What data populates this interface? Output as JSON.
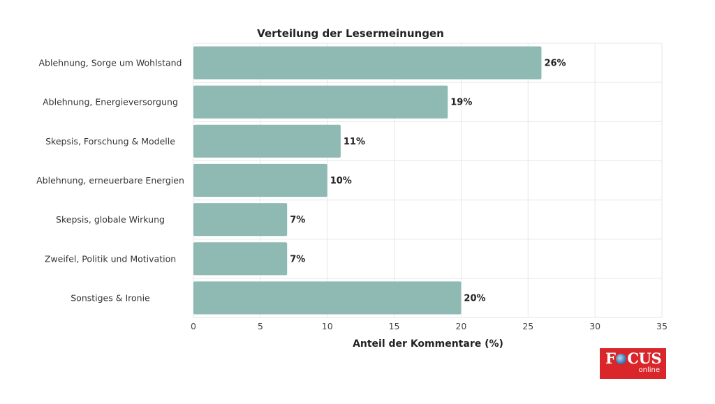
{
  "chart_data": {
    "type": "bar",
    "orientation": "horizontal",
    "title": "Verteilung der Lesermeinungen",
    "xlabel": "Anteil der Kommentare (%)",
    "ylabel": "",
    "xlim": [
      0,
      35
    ],
    "xticks": [
      0,
      5,
      10,
      15,
      20,
      25,
      30,
      35
    ],
    "grid": true,
    "categories": [
      "Ablehnung, Sorge um Wohlstand",
      "Ablehnung, Energieversorgung",
      "Skepsis, Forschung & Modelle",
      "Ablehnung, erneuerbare Energien",
      "Skepsis, globale Wirkung",
      "Zweifel, Politik und Motivation",
      "Sonstiges & Ironie"
    ],
    "values": [
      26,
      19,
      11,
      10,
      7,
      7,
      20
    ],
    "value_labels": [
      "26%",
      "19%",
      "11%",
      "10%",
      "7%",
      "7%",
      "20%"
    ],
    "bar_color": "#8fbab4"
  },
  "logo": {
    "brand": "FOCUS",
    "sub": "online",
    "color": "#d8262a"
  }
}
